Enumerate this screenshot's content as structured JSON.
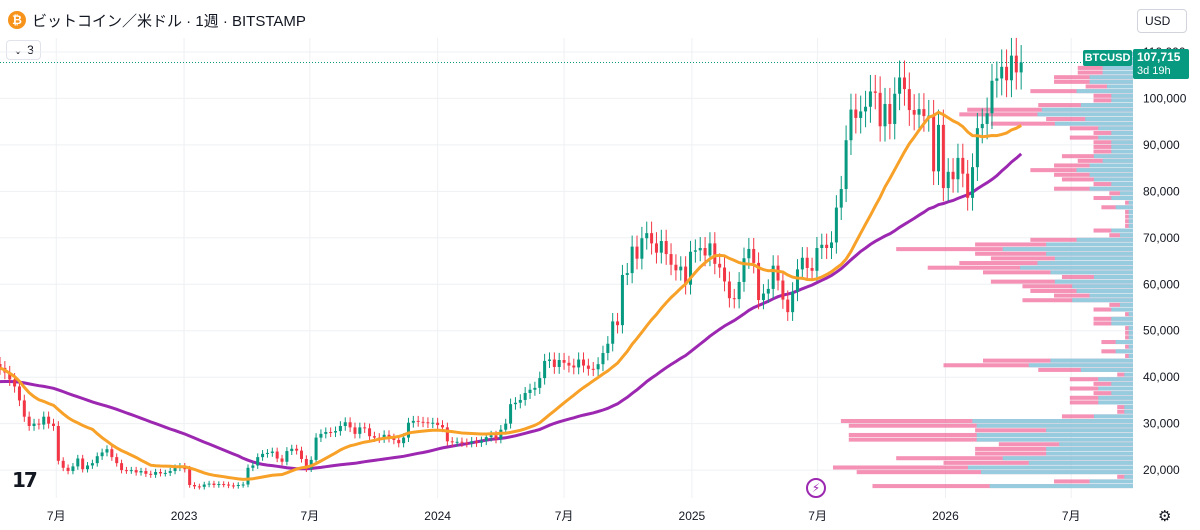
{
  "header": {
    "logo_glyph": "₿",
    "title": "ビットコイン／米ドル · 1週 · BITSTAMP"
  },
  "indicators": {
    "count": "3"
  },
  "currency": {
    "label": "USD"
  },
  "price_badge": {
    "ticker": "BTCUSD",
    "price": "107,715",
    "countdown": "3d 19h"
  },
  "icons": {
    "logo": "tradingview-logo-icon",
    "replay": "lightning-icon",
    "settings": "gear-icon",
    "chevron": "chevron-down-icon"
  },
  "colors": {
    "up": "#089981",
    "down": "#f23645",
    "ma_fast": "#f7a128",
    "ma_slow": "#9c27b0",
    "vp_up": "#7fd9e8",
    "vp_down": "#f06c9b",
    "grid": "#eef0f3"
  },
  "chart_data": {
    "type": "candlestick",
    "symbol": "BTCUSD",
    "timeframe": "1週",
    "ylim": [
      14000,
      113000
    ],
    "y_ticks": [
      20000,
      30000,
      40000,
      50000,
      60000,
      70000,
      80000,
      90000,
      100000,
      110000
    ],
    "y_tick_labels": [
      "20,000",
      "30,000",
      "40,000",
      "50,000",
      "60,000",
      "70,000",
      "80,000",
      "90,000",
      "100,000",
      "110,000"
    ],
    "x_range": [
      "2022-04-11",
      "2026-09-28"
    ],
    "x_ticks": [
      {
        "date": "2022-07-01",
        "label": "7月"
      },
      {
        "date": "2023-01-01",
        "label": "2023"
      },
      {
        "date": "2023-07-01",
        "label": "7月"
      },
      {
        "date": "2024-01-01",
        "label": "2024"
      },
      {
        "date": "2024-07-01",
        "label": "7月"
      },
      {
        "date": "2025-01-01",
        "label": "2025"
      },
      {
        "date": "2025-07-01",
        "label": "7月"
      },
      {
        "date": "2026-01-01",
        "label": "2026"
      },
      {
        "date": "2026-07-01",
        "label": "7月"
      }
    ],
    "last_price": 107715,
    "candles_start": "2022-04-11",
    "weekly_closes": [
      42000,
      41000,
      39500,
      38000,
      35000,
      31500,
      29500,
      30000,
      29800,
      31500,
      30000,
      29500,
      22000,
      20500,
      19800,
      20800,
      22500,
      20200,
      21000,
      21500,
      23000,
      23800,
      24500,
      22800,
      21500,
      20000,
      19900,
      20000,
      19500,
      19800,
      19200,
      19000,
      19600,
      19300,
      19400,
      19800,
      20500,
      20800,
      20200,
      16800,
      16500,
      16400,
      16900,
      17100,
      16800,
      17000,
      16900,
      16700,
      16600,
      16800,
      16900,
      20500,
      21000,
      22800,
      23500,
      23700,
      24000,
      22500,
      21800,
      24100,
      24600,
      24200,
      22400,
      20300,
      22200,
      27000,
      27800,
      28200,
      28100,
      28400,
      29500,
      30300,
      29200,
      27800,
      29200,
      29000,
      27300,
      27000,
      26800,
      27600,
      26900,
      26500,
      25800,
      27000,
      30200,
      30600,
      30400,
      30300,
      30100,
      30200,
      29700,
      29200,
      26200,
      26000,
      26100,
      25900,
      25800,
      26200,
      25900,
      26300,
      27100,
      27500,
      26700,
      28700,
      30000,
      34200,
      34500,
      35100,
      36600,
      37300,
      37700,
      39800,
      43500,
      43800,
      42200,
      43700,
      43100,
      42500,
      42100,
      43800,
      42500,
      41800,
      41700,
      42800,
      45200,
      47200,
      52000,
      51200,
      62000,
      62400,
      68100,
      65500,
      69900,
      71000,
      68800,
      66800,
      69300,
      66500,
      64200,
      63000,
      63800,
      59900,
      67000,
      67300,
      67800,
      66200,
      68800,
      64400,
      63600,
      60600,
      57000,
      56800,
      60500,
      65600,
      67600,
      64600,
      56600,
      58000,
      59000,
      64000,
      60800,
      56700,
      54000,
      58400,
      63200,
      65700,
      63500,
      62900,
      67800,
      68500,
      67800,
      69000,
      76500,
      80500,
      91000,
      97600,
      95800,
      97200,
      98200,
      101500,
      101200,
      94000,
      98800,
      94500,
      101000,
      104500,
      102000,
      97500,
      96500,
      97700,
      96200,
      96300,
      84300,
      94300,
      80700,
      84200,
      82600,
      87200,
      83800,
      78600,
      85200,
      93600,
      94500,
      96800,
      103800,
      104300,
      106800,
      103900,
      109200,
      105600,
      107715
    ]
  }
}
